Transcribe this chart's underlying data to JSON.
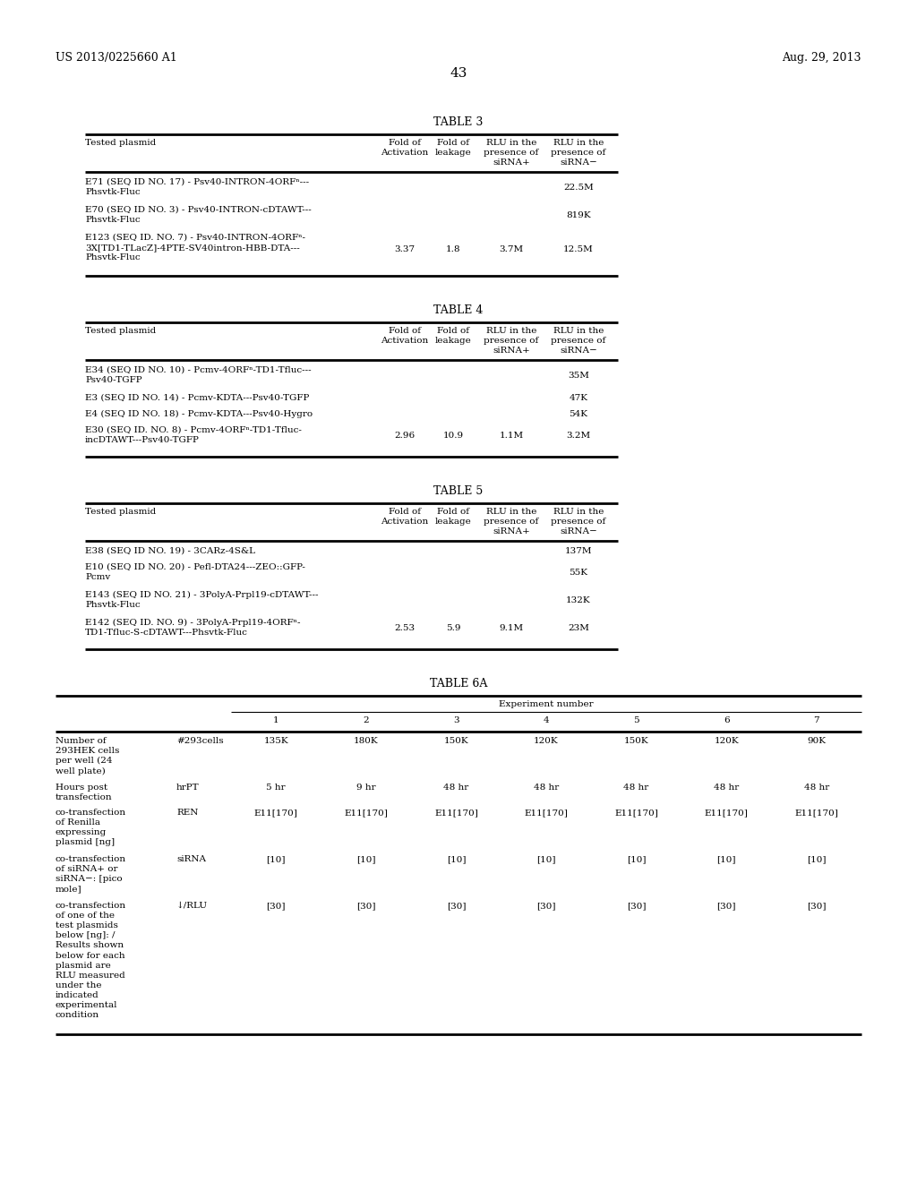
{
  "header_left": "US 2013/0225660 A1",
  "header_right": "Aug. 29, 2013",
  "page_number": "43",
  "background_color": "#ffffff",
  "table3": {
    "title": "TABLE 3",
    "rows": [
      [
        "E71 (SEQ ID NO. 17) - Psv40-INTRON-4ORFⁿ---\nPhsvtk-Fluc",
        "",
        "",
        "",
        "22.5M"
      ],
      [
        "E70 (SEQ ID NO. 3) - Psv40-INTRON-cDTAWT---\nPhsvtk-Fluc",
        "",
        "",
        "",
        "819K"
      ],
      [
        "E123 (SEQ ID. NO. 7) - Psv40-INTRON-4ORFⁿ-\n3X[TD1-TLacZ]-4PTE-SV40intron-HBB-DTA---\nPhsvtk-Fluc",
        "3.37",
        "1.8",
        "3.7M",
        "12.5M"
      ]
    ]
  },
  "table4": {
    "title": "TABLE 4",
    "rows": [
      [
        "E34 (SEQ ID NO. 10) - Pcmv-4ORFⁿ-TD1-Tfluc---\nPsv40-TGFP",
        "",
        "",
        "",
        "35M"
      ],
      [
        "E3 (SEQ ID NO. 14) - Pcmv-KDTA---Psv40-TGFP",
        "",
        "",
        "",
        "47K"
      ],
      [
        "E4 (SEQ ID NO. 18) - Pcmv-KDTA---Psv40-Hygro",
        "",
        "",
        "",
        "54K"
      ],
      [
        "E30 (SEQ ID. NO. 8) - Pcmv-4ORFⁿ-TD1-Tfluc-\nincDTAWT---Psv40-TGFP",
        "2.96",
        "10.9",
        "1.1M",
        "3.2M"
      ]
    ]
  },
  "table5": {
    "title": "TABLE 5",
    "rows": [
      [
        "E38 (SEQ ID NO. 19) - 3CARz-4S&L",
        "",
        "",
        "",
        "137M"
      ],
      [
        "E10 (SEQ ID NO. 20) - Pefl-DTA24---ZEO::GFP-\nPcmv",
        "",
        "",
        "",
        "55K"
      ],
      [
        "E143 (SEQ ID NO. 21) - 3PolyA-Prpl19-cDTAWT---\nPhsvtk-Fluc",
        "",
        "",
        "",
        "132K"
      ],
      [
        "E142 (SEQ ID. NO. 9) - 3PolyA-Prpl19-4ORFⁿ-\nTD1-Tfluc-S-cDTAWT---Phsvtk-Fluc",
        "2.53",
        "5.9",
        "9.1M",
        "23M"
      ]
    ]
  },
  "table6a": {
    "title": "TABLE 6A",
    "experiment_label": "Experiment number",
    "exp_numbers": [
      "1",
      "2",
      "3",
      "4",
      "5",
      "6",
      "7"
    ],
    "row_descs": [
      "Number of\n293HEK cells\nper well (24\nwell plate)",
      "Hours post\ntransfection",
      "co-transfection\nof Renilla\nexpressing\nplasmid [ng]",
      "co-transfection\nof siRNA+ or\nsiRNA−: [pico\nmole]",
      "co-transfection\nof one of the\ntest plasmids\nbelow [ng]: /\nResults shown\nbelow for each\nplasmid are\nRLU measured\nunder the\nindicated\nexperimental\ncondition"
    ],
    "row_units": [
      "#293cells",
      "hrPT",
      "REN",
      "siRNA",
      "↓/RLU"
    ],
    "row_data": [
      [
        "135K",
        "180K",
        "150K",
        "120K",
        "150K",
        "120K",
        "90K"
      ],
      [
        "5 hr",
        "9 hr",
        "48 hr",
        "48 hr",
        "48 hr",
        "48 hr",
        "48 hr"
      ],
      [
        "E11[170]",
        "E11[170]",
        "E11[170]",
        "E11[170]",
        "E11[170]",
        "E11[170]",
        "E11[170]"
      ],
      [
        "[10]",
        "[10]",
        "[10]",
        "[10]",
        "[10]",
        "[10]",
        "[10]"
      ],
      [
        "[30]",
        "[30]",
        "[30]",
        "[30]",
        "[30]",
        "[30]",
        "[30]"
      ]
    ]
  }
}
